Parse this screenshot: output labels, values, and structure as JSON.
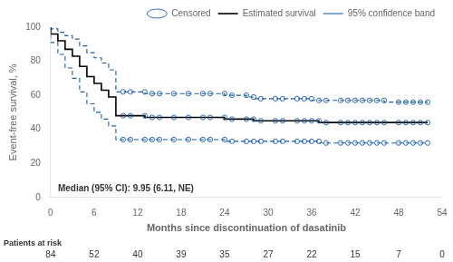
{
  "chart_data": {
    "type": "line",
    "xlabel": "Months since discontinuation of dasatinib",
    "ylabel": "Event-free survival, %",
    "xlim": [
      0,
      54
    ],
    "ylim": [
      0,
      100
    ],
    "xticks": [
      0,
      6,
      12,
      18,
      24,
      30,
      36,
      42,
      48,
      54
    ],
    "yticks": [
      0,
      20,
      40,
      60,
      80,
      100
    ],
    "grid": false,
    "legend": "upper right",
    "annotations": [
      "Median (95% CI): 9.95 (6.11, NE)"
    ],
    "patients_at_risk": {
      "label": "Patients at risk",
      "x": [
        0,
        6,
        12,
        18,
        24,
        30,
        36,
        42,
        48,
        54
      ],
      "n": [
        84,
        52,
        40,
        39,
        35,
        27,
        22,
        15,
        7,
        0
      ]
    },
    "series": [
      {
        "name": "Estimated survival",
        "type": "line",
        "color": "#000000",
        "line_style": "solid",
        "x": [
          0,
          1,
          2,
          3,
          4,
          5,
          6,
          7,
          8,
          9,
          9.95,
          10,
          11,
          12,
          13,
          14,
          15,
          17,
          19,
          21,
          22,
          24,
          25,
          27,
          28,
          29,
          31,
          32,
          34,
          35,
          36,
          37,
          38,
          40,
          41,
          42,
          43,
          44,
          45,
          46,
          48,
          49,
          50,
          51,
          52
        ],
        "values": [
          100,
          96,
          92,
          87,
          83,
          77,
          71,
          67,
          63,
          59,
          48,
          48,
          48,
          48,
          48,
          47,
          47,
          47,
          47,
          47,
          47,
          47,
          46,
          46,
          46,
          45,
          45,
          45,
          45,
          45,
          45,
          45,
          44,
          44,
          44,
          44,
          44,
          44,
          44,
          44,
          44,
          44,
          44,
          44,
          44
        ]
      },
      {
        "name": "95% confidence band",
        "type": "line",
        "color": "#1a5fa8",
        "line_style": "dashed",
        "x": [
          0,
          1,
          2,
          3,
          4,
          5,
          6,
          7,
          8,
          9,
          9.95,
          10,
          11,
          12,
          13,
          14,
          15,
          17,
          19,
          21,
          22,
          24,
          25,
          27,
          28,
          29,
          31,
          32,
          34,
          35,
          36,
          37,
          38,
          40,
          41,
          42,
          43,
          44,
          45,
          46,
          48,
          49,
          50,
          51,
          52
        ],
        "upper": [
          100,
          99,
          97,
          95,
          93,
          89,
          85,
          82,
          79,
          75,
          62,
          62,
          62,
          62,
          62,
          61,
          61,
          61,
          61,
          61,
          61,
          61,
          60,
          60,
          59,
          58,
          58,
          58,
          58,
          58,
          58,
          57,
          57,
          57,
          57,
          57,
          57,
          57,
          57,
          57,
          56,
          56,
          56,
          56,
          56
        ],
        "lower": [
          100,
          91,
          84,
          76,
          70,
          62,
          55,
          50,
          46,
          42,
          34,
          34,
          34,
          34,
          34,
          34,
          34,
          34,
          34,
          34,
          34,
          34,
          33,
          33,
          33,
          33,
          33,
          33,
          33,
          33,
          33,
          33,
          32,
          32,
          32,
          32,
          32,
          32,
          32,
          32,
          32,
          32,
          32,
          32,
          32
        ]
      },
      {
        "name": "Censored",
        "type": "scatter",
        "color": "#1a5fa8",
        "marker": "circle",
        "x": [
          10,
          11,
          13,
          14,
          15,
          17,
          19,
          21,
          22,
          24,
          25,
          27,
          28,
          29,
          31,
          32,
          34,
          35,
          36,
          37,
          38,
          40,
          41,
          42,
          43,
          44,
          45,
          46,
          48,
          49,
          50,
          51,
          52
        ],
        "values": [
          48,
          48,
          48,
          47,
          47,
          47,
          47,
          47,
          47,
          47,
          46,
          46,
          46,
          45,
          45,
          45,
          45,
          45,
          45,
          45,
          44,
          44,
          44,
          44,
          44,
          44,
          44,
          44,
          44,
          44,
          44,
          44,
          44
        ],
        "upper": [
          62,
          62,
          62,
          61,
          61,
          61,
          61,
          61,
          61,
          61,
          60,
          60,
          59,
          58,
          58,
          58,
          58,
          58,
          58,
          57,
          57,
          57,
          57,
          57,
          57,
          57,
          57,
          57,
          56,
          56,
          56,
          56,
          56
        ],
        "lower": [
          34,
          34,
          34,
          34,
          34,
          34,
          34,
          34,
          34,
          34,
          33,
          33,
          33,
          33,
          33,
          33,
          33,
          33,
          33,
          33,
          32,
          32,
          32,
          32,
          32,
          32,
          32,
          32,
          32,
          32,
          32,
          32,
          32
        ]
      }
    ]
  }
}
